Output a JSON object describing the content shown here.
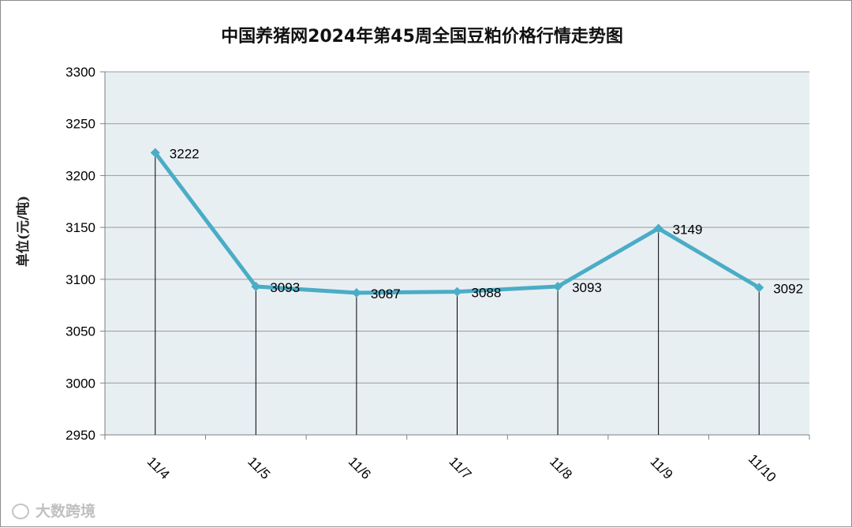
{
  "chart_data": {
    "type": "line",
    "title": "中国养猪网2024年第45周全国豆粕价格行情走势图",
    "ylabel": "单位(元/吨)",
    "xlabel": "",
    "categories": [
      "11/4",
      "11/5",
      "11/6",
      "11/7",
      "11/8",
      "11/9",
      "11/10"
    ],
    "series": [
      {
        "values": [
          3222,
          3093,
          3087,
          3088,
          3093,
          3149,
          3092
        ]
      }
    ],
    "ylim": [
      2950,
      3300
    ],
    "yticks": [
      2950,
      3000,
      3050,
      3100,
      3150,
      3200,
      3250,
      3300
    ],
    "grid": true,
    "drop_lines": true,
    "colors": {
      "line": "#4bacc6",
      "plot_background": "#e8eff3",
      "gridline": "#9a9a9a",
      "drop_line": "#000000"
    }
  },
  "watermark": {
    "icon": "pig-logo-icon",
    "text": "大数跨境"
  }
}
